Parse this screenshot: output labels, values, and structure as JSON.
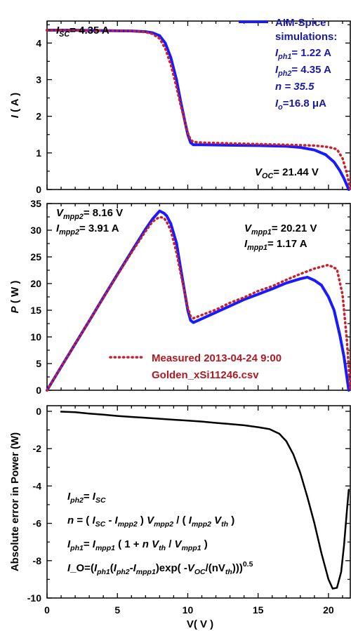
{
  "colors": {
    "simulated": "#1a1aff",
    "measured": "#cc1f2a",
    "error": "#000000",
    "blue_text": "#1a1aa8",
    "red_text": "#b01822"
  },
  "chart_data": [
    {
      "type": "line",
      "ylabel": "I ( A )",
      "xlim": [
        0,
        21.6
      ],
      "ylim": [
        0,
        4.6
      ],
      "yticks": [
        "0",
        "1",
        "2",
        "3",
        "4"
      ],
      "series": [
        {
          "name": "AIM-Spice simulations",
          "style": "solid",
          "x": [
            0,
            2,
            4,
            6,
            7,
            7.5,
            8,
            8.4,
            8.8,
            9.2,
            9.5,
            9.8,
            10.0,
            10.2,
            10.4,
            11,
            13,
            15,
            17,
            18,
            19,
            19.8,
            20.4,
            20.8,
            21.1,
            21.44
          ],
          "y": [
            4.35,
            4.35,
            4.34,
            4.33,
            4.31,
            4.28,
            4.2,
            4.0,
            3.6,
            3.0,
            2.4,
            1.85,
            1.5,
            1.28,
            1.22,
            1.22,
            1.21,
            1.2,
            1.18,
            1.15,
            1.08,
            0.95,
            0.75,
            0.52,
            0.3,
            0
          ]
        },
        {
          "name": "Measured 2013-04-24 9:00",
          "style": "dotted",
          "x": [
            0,
            2,
            4,
            6,
            7,
            7.5,
            8,
            8.4,
            8.8,
            9.2,
            9.5,
            9.8,
            10.0,
            10.2,
            10.4,
            11,
            13,
            15,
            17,
            19,
            20,
            20.6,
            21,
            21.3,
            21.55
          ],
          "y": [
            4.35,
            4.35,
            4.34,
            4.33,
            4.3,
            4.25,
            4.12,
            3.85,
            3.4,
            2.8,
            2.3,
            1.85,
            1.55,
            1.36,
            1.3,
            1.28,
            1.26,
            1.24,
            1.22,
            1.2,
            1.16,
            1.1,
            0.85,
            0.45,
            0
          ]
        }
      ],
      "annotations": {
        "isc": {
          "sym": "I",
          "sub": "SC",
          "text": "= 4.35  A"
        },
        "voc": {
          "sym": "V",
          "sub": "OC",
          "text": "= 21.44 V"
        },
        "legend_title": [
          "AIM-Spice",
          "simulations:"
        ],
        "params": [
          {
            "sym": "I",
            "sub": "ph1",
            "text": "= 1.22 A"
          },
          {
            "sym": "I",
            "sub": "ph2",
            "text": "= 4.35 A"
          },
          {
            "sym": "n",
            "sub": "",
            "text": " = 35.5"
          },
          {
            "sym": "I",
            "sub": "o",
            "text": "=16.8 μA"
          }
        ]
      }
    },
    {
      "type": "line",
      "ylabel": "P ( W )",
      "xlim": [
        0,
        21.6
      ],
      "ylim": [
        0,
        35
      ],
      "yticks": [
        "0",
        "5",
        "10",
        "15",
        "20",
        "25",
        "30",
        "35"
      ],
      "series": [
        {
          "name": "AIM-Spice simulations",
          "style": "solid",
          "x": [
            0,
            1,
            2,
            3,
            4,
            5,
            6,
            7,
            7.5,
            8,
            8.3,
            8.5,
            8.8,
            9.2,
            9.5,
            9.8,
            10.0,
            10.2,
            10.4,
            11,
            12,
            13,
            14,
            15,
            16,
            17,
            18,
            18.5,
            19,
            19.5,
            20,
            20.4,
            20.8,
            21.1,
            21.44
          ],
          "y": [
            0,
            4.35,
            8.7,
            13.0,
            17.4,
            21.7,
            26.0,
            30.2,
            32.1,
            33.6,
            33.2,
            32.7,
            31.2,
            27.6,
            22.8,
            18.1,
            15.0,
            13.1,
            12.7,
            13.4,
            14.6,
            15.8,
            17.0,
            18.0,
            19.0,
            20.1,
            20.9,
            21.2,
            20.6,
            19.7,
            17.5,
            15.0,
            10.4,
            6.3,
            0
          ]
        },
        {
          "name": "Measured 2013-04-24 9:00",
          "style": "dotted",
          "x": [
            0,
            1,
            2,
            3,
            4,
            5,
            6,
            7,
            7.5,
            8,
            8.3,
            8.5,
            8.8,
            9.2,
            9.5,
            9.8,
            10.0,
            10.2,
            10.4,
            11,
            12,
            13,
            14,
            15,
            16,
            17,
            18,
            19,
            20,
            20.6,
            21,
            21.3,
            21.55
          ],
          "y": [
            0,
            4.35,
            8.7,
            13.0,
            17.3,
            21.6,
            25.8,
            29.8,
            31.6,
            32.5,
            32.3,
            31.6,
            29.9,
            25.8,
            21.9,
            18.1,
            15.5,
            13.9,
            13.5,
            14.1,
            15.1,
            16.4,
            17.4,
            18.6,
            19.5,
            20.7,
            21.8,
            22.8,
            23.5,
            22.7,
            17.9,
            9.6,
            0
          ]
        }
      ],
      "annotations": {
        "mpp2": [
          {
            "sym": "V",
            "sub": "mpp2",
            "text": "= 8.16 V"
          },
          {
            "sym": "I",
            "sub": "mpp2",
            "text": "= 3.91 A"
          }
        ],
        "mpp1": [
          {
            "sym": "V",
            "sub": "mpp1",
            "text": "= 20.21 V"
          },
          {
            "sym": "I",
            "sub": "mpp1",
            "text": "= 1.17 A"
          }
        ],
        "measured_legend": [
          "Measured 2013-04-24 9:00",
          "Golden_xSi11246.csv"
        ]
      }
    },
    {
      "type": "line",
      "ylabel": "Absolute error in Power (W)",
      "xlabel": "V( V )",
      "xlim": [
        0,
        21.6
      ],
      "ylim": [
        -10,
        0.3
      ],
      "xticks": [
        "0",
        "5",
        "10",
        "15",
        "20"
      ],
      "yticks": [
        "-10",
        "-8",
        "-6",
        "-4",
        "-2",
        "0"
      ],
      "series": [
        {
          "name": "Absolute error",
          "style": "solid",
          "x": [
            1.0,
            2,
            3,
            4,
            5,
            6,
            7,
            8,
            9,
            10,
            11,
            12,
            13,
            14,
            15,
            15.8,
            16.5,
            17,
            17.5,
            18,
            18.5,
            19,
            19.5,
            20,
            20.3,
            20.6,
            20.9,
            21.1,
            21.3,
            21.44
          ],
          "y": [
            -0.02,
            -0.05,
            -0.12,
            -0.18,
            -0.25,
            -0.3,
            -0.35,
            -0.4,
            -0.45,
            -0.5,
            -0.55,
            -0.62,
            -0.68,
            -0.75,
            -0.85,
            -0.95,
            -1.2,
            -1.6,
            -2.3,
            -3.3,
            -4.6,
            -6.0,
            -7.6,
            -9.0,
            -9.5,
            -9.45,
            -8.6,
            -7.2,
            -5.4,
            -4.2
          ]
        }
      ],
      "formulas": [
        "I_{ph2}= I_{SC}",
        "n = ( I_{SC} - I_{mpp2} ) V_{mpp2} / ( I_{mpp2} V_{th} )",
        "I_{ph1}= I_{mpp1} ( 1 + n V_{th} / V_{mpp1} )",
        "I_O=(I_{ph1}(I_{ph2}-I_{mpp1})exp( -V_{OC}/(nV_{th})))^{0.5}"
      ]
    }
  ]
}
